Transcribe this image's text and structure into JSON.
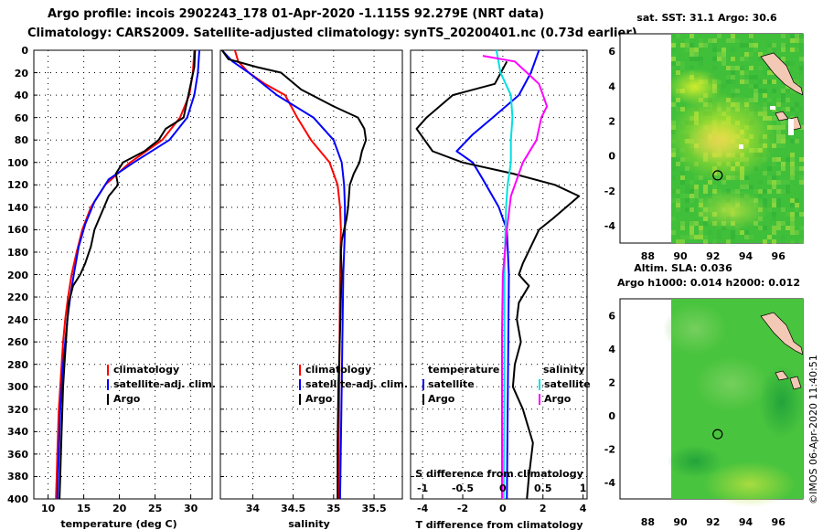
{
  "header": {
    "line1": "Argo profile: incois 2902243_178 01-Apr-2020 -1.115S 92.279E (NRT data)",
    "line2": "Climatology: CARS2009. Satellite-adjusted climatology: synTS_20200401.nc (0.73d earlier)"
  },
  "colors": {
    "clim": "#ff0000",
    "sat": "#0000ff",
    "argo": "#000000",
    "sal_argo": "#ff00ff",
    "sal_sat": "#00e0e0"
  },
  "depth_axis": {
    "ylim": [
      0,
      400
    ],
    "ticks": [
      "0",
      "20",
      "40",
      "60",
      "80",
      "100",
      "120",
      "140",
      "160",
      "180",
      "200",
      "220",
      "240",
      "260",
      "280",
      "300",
      "320",
      "340",
      "360",
      "380",
      "400"
    ]
  },
  "chart_data": [
    {
      "type": "line",
      "xlabel": "temperature (deg C)",
      "xlim": [
        8,
        33
      ],
      "x_ticks": [
        "10",
        "15",
        "20",
        "25",
        "30"
      ],
      "legend": [
        "climatology",
        "satellite-adj. clim.",
        "Argo"
      ],
      "series": [
        {
          "name": "climatology",
          "color": "red",
          "points": [
            [
              30.5,
              0
            ],
            [
              30.3,
              20
            ],
            [
              29.8,
              40
            ],
            [
              28.5,
              60
            ],
            [
              26,
              80
            ],
            [
              21.5,
              100
            ],
            [
              18,
              120
            ],
            [
              16,
              140
            ],
            [
              14.8,
              160
            ],
            [
              14,
              180
            ],
            [
              13.3,
              200
            ],
            [
              12.8,
              220
            ],
            [
              12.4,
              240
            ],
            [
              12.1,
              260
            ],
            [
              11.9,
              280
            ],
            [
              11.7,
              300
            ],
            [
              11.5,
              320
            ],
            [
              11.4,
              340
            ],
            [
              11.3,
              360
            ],
            [
              11.2,
              380
            ],
            [
              11.1,
              400
            ]
          ]
        },
        {
          "name": "satellite-adj. clim.",
          "color": "blue",
          "points": [
            [
              31.2,
              0
            ],
            [
              31,
              20
            ],
            [
              30.5,
              40
            ],
            [
              29.5,
              60
            ],
            [
              27,
              80
            ],
            [
              22,
              100
            ],
            [
              18.5,
              115
            ],
            [
              16.5,
              135
            ],
            [
              15.2,
              155
            ],
            [
              14.3,
              175
            ],
            [
              13.6,
              200
            ],
            [
              13.1,
              220
            ],
            [
              12.7,
              240
            ],
            [
              12.4,
              260
            ],
            [
              12.1,
              280
            ],
            [
              11.9,
              300
            ],
            [
              11.7,
              320
            ],
            [
              11.6,
              340
            ],
            [
              11.5,
              360
            ],
            [
              11.4,
              380
            ],
            [
              11.3,
              400
            ]
          ]
        },
        {
          "name": "Argo",
          "color": "black",
          "points": [
            [
              30.6,
              0
            ],
            [
              30.5,
              15
            ],
            [
              30,
              30
            ],
            [
              29.5,
              45
            ],
            [
              29,
              60
            ],
            [
              26.5,
              70
            ],
            [
              25.5,
              80
            ],
            [
              23.5,
              90
            ],
            [
              20.5,
              100
            ],
            [
              19.5,
              110
            ],
            [
              19.8,
              120
            ],
            [
              18.5,
              130
            ],
            [
              17.5,
              145
            ],
            [
              16.5,
              160
            ],
            [
              16,
              175
            ],
            [
              15.2,
              190
            ],
            [
              14.5,
              200
            ],
            [
              13.5,
              210
            ],
            [
              12.9,
              225
            ],
            [
              12.7,
              240
            ],
            [
              12.5,
              260
            ],
            [
              12.3,
              280
            ],
            [
              12.1,
              300
            ],
            [
              12,
              320
            ],
            [
              11.9,
              340
            ],
            [
              11.8,
              360
            ],
            [
              11.7,
              380
            ],
            [
              11.6,
              400
            ]
          ]
        }
      ]
    },
    {
      "type": "line",
      "xlabel": "salinity",
      "xlim": [
        33.6,
        35.85
      ],
      "x_ticks": [
        "34",
        "34.5",
        "35",
        "35.5"
      ],
      "legend": [
        "climatology",
        "satellite-adj. clim.",
        "Argo"
      ],
      "series": [
        {
          "name": "climatology",
          "color": "red",
          "points": [
            [
              33.78,
              0
            ],
            [
              33.82,
              10
            ],
            [
              33.95,
              20
            ],
            [
              34.15,
              30
            ],
            [
              34.4,
              40
            ],
            [
              34.55,
              60
            ],
            [
              34.72,
              80
            ],
            [
              34.95,
              100
            ],
            [
              35.05,
              120
            ],
            [
              35.08,
              140
            ],
            [
              35.09,
              160
            ],
            [
              35.08,
              200
            ],
            [
              35.07,
              300
            ],
            [
              35.06,
              400
            ]
          ]
        },
        {
          "name": "satellite-adj. clim.",
          "color": "blue",
          "points": [
            [
              33.62,
              0
            ],
            [
              33.75,
              10
            ],
            [
              33.95,
              20
            ],
            [
              34.3,
              40
            ],
            [
              34.75,
              60
            ],
            [
              35.0,
              80
            ],
            [
              35.1,
              100
            ],
            [
              35.13,
              120
            ],
            [
              35.14,
              140
            ],
            [
              35.14,
              160
            ],
            [
              35.12,
              200
            ],
            [
              35.1,
              300
            ],
            [
              35.08,
              400
            ]
          ]
        },
        {
          "name": "Argo",
          "color": "black",
          "points": [
            [
              33.62,
              0
            ],
            [
              33.7,
              8
            ],
            [
              34.05,
              15
            ],
            [
              34.35,
              20
            ],
            [
              34.6,
              35
            ],
            [
              35.0,
              50
            ],
            [
              35.3,
              60
            ],
            [
              35.38,
              70
            ],
            [
              35.4,
              80
            ],
            [
              35.35,
              90
            ],
            [
              35.32,
              100
            ],
            [
              35.25,
              110
            ],
            [
              35.2,
              120
            ],
            [
              35.18,
              140
            ],
            [
              35.16,
              150
            ],
            [
              35.13,
              160
            ],
            [
              35.1,
              170
            ],
            [
              35.09,
              180
            ],
            [
              35.1,
              200
            ],
            [
              35.09,
              220
            ],
            [
              35.08,
              250
            ],
            [
              35.06,
              300
            ],
            [
              35.05,
              350
            ],
            [
              35.05,
              400
            ]
          ]
        }
      ]
    },
    {
      "type": "line",
      "xlabel": "T difference from climatology",
      "xlim": [
        -4.6,
        4.2
      ],
      "x_ticks": [
        "-4",
        "-2",
        "0",
        "2",
        "4"
      ],
      "top_axis_label": "S difference from climatology",
      "top_ticks": [
        "-1",
        "-0.5",
        "0",
        "0.5",
        "1"
      ],
      "legend_left_title": "temperature",
      "legend_right_title": "salinity",
      "legend": [
        "satellite",
        "Argo",
        "satellite",
        "Argo"
      ],
      "series": [
        {
          "name": "T satellite",
          "color": "blue",
          "points": [
            [
              1.8,
              0
            ],
            [
              1.4,
              20
            ],
            [
              0.8,
              40
            ],
            [
              -0.5,
              60
            ],
            [
              -1.5,
              75
            ],
            [
              -2.3,
              90
            ],
            [
              -1.5,
              100
            ],
            [
              -1,
              115
            ],
            [
              -0.2,
              140
            ],
            [
              0.2,
              160
            ],
            [
              0.3,
              200
            ],
            [
              0.25,
              300
            ],
            [
              0.2,
              400
            ]
          ]
        },
        {
          "name": "T Argo",
          "color": "black",
          "points": [
            [
              0.2,
              10
            ],
            [
              -0.4,
              30
            ],
            [
              -2.5,
              40
            ],
            [
              -3.8,
              60
            ],
            [
              -4.3,
              70
            ],
            [
              -3.5,
              90
            ],
            [
              -2,
              100
            ],
            [
              0.5,
              110
            ],
            [
              2.6,
              120
            ],
            [
              3.8,
              130
            ],
            [
              2.5,
              150
            ],
            [
              1.8,
              160
            ],
            [
              1.4,
              175
            ],
            [
              1,
              190
            ],
            [
              0.8,
              200
            ],
            [
              1.3,
              210
            ],
            [
              0.8,
              225
            ],
            [
              0.7,
              240
            ],
            [
              0.9,
              260
            ],
            [
              0.6,
              280
            ],
            [
              0.5,
              300
            ],
            [
              1,
              320
            ],
            [
              1.5,
              350
            ],
            [
              1.3,
              380
            ],
            [
              1.2,
              400
            ]
          ]
        },
        {
          "name": "S satellite",
          "color": "cyan",
          "points": [
            [
              -0.08,
              0
            ],
            [
              -0.03,
              20
            ],
            [
              0.1,
              40
            ],
            [
              0.12,
              60
            ],
            [
              0.1,
              80
            ],
            [
              0.1,
              100
            ],
            [
              0.06,
              120
            ],
            [
              0.04,
              140
            ],
            [
              0.02,
              200
            ],
            [
              0.02,
              300
            ],
            [
              0.01,
              400
            ]
          ]
        },
        {
          "name": "S Argo",
          "color": "magenta",
          "points": [
            [
              -0.25,
              5
            ],
            [
              0.15,
              10
            ],
            [
              0.3,
              20
            ],
            [
              0.45,
              30
            ],
            [
              0.5,
              40
            ],
            [
              0.55,
              50
            ],
            [
              0.48,
              60
            ],
            [
              0.42,
              80
            ],
            [
              0.25,
              100
            ],
            [
              0.1,
              130
            ],
            [
              0.05,
              160
            ],
            [
              0.0,
              200
            ],
            [
              -0.01,
              250
            ],
            [
              -0.01,
              300
            ],
            [
              -0.01,
              400
            ]
          ]
        }
      ]
    }
  ],
  "map_top": {
    "title": "sat. SST: 31.1  Argo: 30.6",
    "x_ticks": [
      "88",
      "90",
      "92",
      "94",
      "96"
    ],
    "y_ticks": [
      "6",
      "4",
      "2",
      "0",
      "-2",
      "-4"
    ],
    "marker": {
      "lon": 92.279,
      "lat": -1.115
    }
  },
  "map_bottom": {
    "title1": "Altim. SLA: 0.036",
    "title2": "Argo h1000: 0.014 h2000: 0.012",
    "x_ticks": [
      "88",
      "90",
      "92",
      "94",
      "96"
    ],
    "y_ticks": [
      "6",
      "4",
      "2",
      "0",
      "-2",
      "-4"
    ],
    "marker": {
      "lon": 92.279,
      "lat": -1.115
    }
  },
  "footer": {
    "credit": "©IMOS 06-Apr-2020 11:40:51"
  }
}
